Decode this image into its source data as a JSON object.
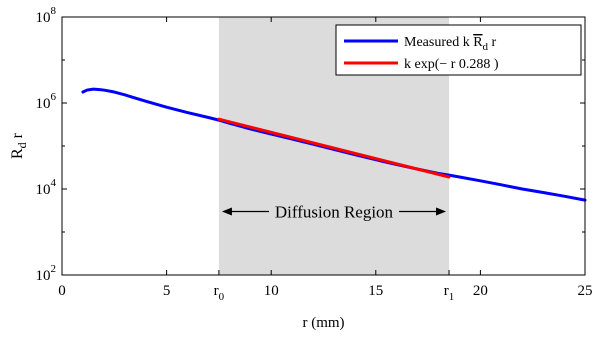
{
  "chart_data": {
    "type": "line",
    "xlabel": "r (mm)",
    "ylabel_base": "R",
    "ylabel_sub": "d",
    "ylabel_tail": " r",
    "xlim": [
      0,
      25
    ],
    "ylim": [
      100,
      100000000
    ],
    "yscale": "log",
    "x_ticks": [
      {
        "value": 0,
        "label": "0"
      },
      {
        "value": 5,
        "label": "5"
      },
      {
        "value": 10,
        "label": "10"
      },
      {
        "value": 15,
        "label": "15"
      },
      {
        "value": 20,
        "label": "20"
      },
      {
        "value": 25,
        "label": "25"
      }
    ],
    "x_sub_ticks": [
      {
        "value": 7.5,
        "base": "r",
        "sub": "0"
      },
      {
        "value": 18.5,
        "base": "r",
        "sub": "1"
      }
    ],
    "y_ticks": [
      {
        "value": 100,
        "base": "10",
        "exp": "2"
      },
      {
        "value": 10000,
        "base": "10",
        "exp": "4"
      },
      {
        "value": 1000000,
        "base": "10",
        "exp": "6"
      },
      {
        "value": 100000000,
        "base": "10",
        "exp": "8"
      }
    ],
    "shaded_region": {
      "x_start": 7.5,
      "x_end": 18.5,
      "color": "#dcdcdc"
    },
    "annotation": {
      "text": "Diffusion Region",
      "x_start": 7.5,
      "x_end": 18.5,
      "y": 3000
    },
    "legend": {
      "position": "top-right",
      "entries": [
        {
          "series": 0,
          "prefix": "Measured k ",
          "sym": "R",
          "sub": "d",
          "suffix": " r"
        },
        {
          "series": 1,
          "text": "k exp(− r 0.288 )"
        }
      ]
    },
    "series": [
      {
        "color": "#0000ff",
        "x": [
          1.0,
          1.2,
          1.5,
          1.8,
          2.0,
          2.5,
          3.0,
          3.5,
          4.0,
          5.0,
          6.0,
          7.0,
          7.5,
          8.0,
          9.0,
          10.0,
          11.0,
          12.0,
          13.0,
          14.0,
          15.0,
          16.0,
          17.0,
          18.0,
          18.5,
          19.0,
          20.0,
          21.0,
          22.0,
          23.0,
          24.0,
          25.0
        ],
        "y": [
          1800000,
          2000000,
          2100000,
          2050000,
          2000000,
          1800000,
          1550000,
          1300000,
          1100000,
          800000,
          600000,
          460000,
          400000,
          340000,
          250000,
          190000,
          145000,
          110000,
          83000,
          63000,
          48000,
          37000,
          29000,
          23000,
          21000,
          19000,
          15500,
          12500,
          10000,
          8300,
          6800,
          5500
        ]
      },
      {
        "color": "#ff0000",
        "x": [
          7.5,
          18.5
        ],
        "y": [
          420000,
          19000
        ]
      }
    ]
  }
}
